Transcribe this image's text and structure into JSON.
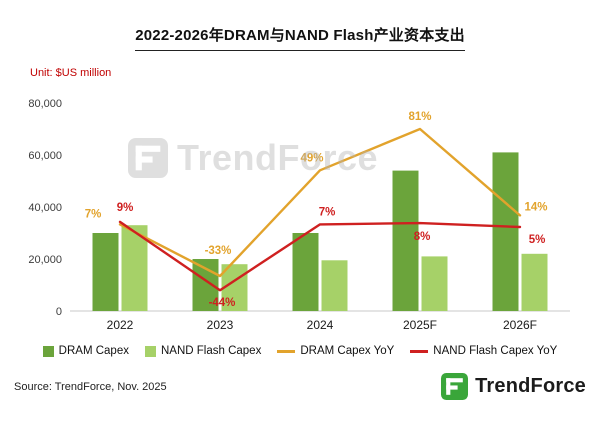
{
  "chart_data": {
    "type": "combo-bar-line",
    "title": "2022-2026年DRAM与NAND Flash产业资本支出",
    "unit_label": "Unit: $US million",
    "categories": [
      "2022",
      "2023",
      "2024",
      "2025F",
      "2026F"
    ],
    "bar_series": [
      {
        "name": "DRAM Capex",
        "color": "#6ba43b",
        "values": [
          30000,
          20000,
          30000,
          54000,
          61000
        ]
      },
      {
        "name": "NAND Flash Capex",
        "color": "#a6d168",
        "values": [
          33000,
          18000,
          19500,
          21000,
          22000
        ]
      }
    ],
    "line_series": [
      {
        "name": "DRAM Capex YoY",
        "color": "#e2a32c",
        "values_pct": [
          7,
          -33,
          49,
          81,
          14
        ],
        "labels": [
          "7%",
          "-33%",
          "49%",
          "81%",
          "14%"
        ]
      },
      {
        "name": "NAND Flash Capex YoY",
        "color": "#cf2020",
        "values_pct": [
          9,
          -44,
          7,
          8,
          5
        ],
        "labels": [
          "9%",
          "-44%",
          "7%",
          "8%",
          "5%"
        ]
      }
    ],
    "ylim": [
      0,
      80000
    ],
    "yticks": [
      "0",
      "20,000",
      "40,000",
      "60,000",
      "80,000"
    ],
    "grid": false,
    "legend_position": "bottom"
  },
  "watermark": {
    "text": "TrendForce"
  },
  "footer": {
    "source": "Source: TrendForce, Nov. 2025",
    "brand": "TrendForce"
  }
}
